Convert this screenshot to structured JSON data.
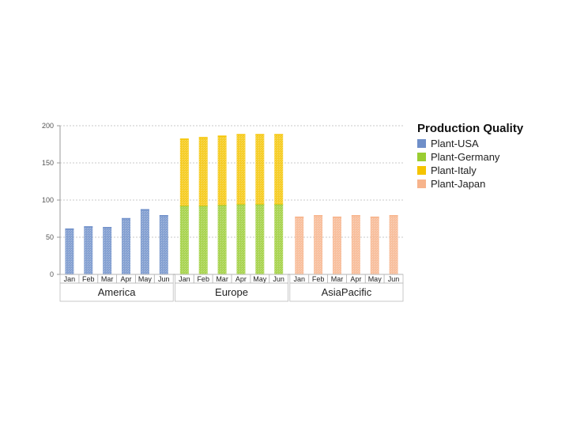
{
  "chart_data": {
    "type": "bar",
    "stacked": true,
    "title": "",
    "xlabel": "",
    "ylabel": "",
    "ylim": [
      0,
      200
    ],
    "yticks": [
      0,
      50,
      100,
      150,
      200
    ],
    "grid": true,
    "legend": {
      "title": "Production Quality",
      "placement": "right",
      "entries": [
        {
          "name": "Plant-USA",
          "color": "#6f8fc9"
        },
        {
          "name": "Plant-Germany",
          "color": "#9acd32"
        },
        {
          "name": "Plant-Italy",
          "color": "#f5c400"
        },
        {
          "name": "Plant-Japan",
          "color": "#f7b48c"
        }
      ]
    },
    "groups": [
      {
        "name": "America",
        "categories": [
          "Jan",
          "Feb",
          "Mar",
          "Apr",
          "May",
          "Jun"
        ],
        "series": [
          {
            "name": "Plant-USA",
            "values": [
              61,
              64,
              63,
              75,
              87,
              79
            ]
          }
        ]
      },
      {
        "name": "Europe",
        "categories": [
          "Jan",
          "Feb",
          "Mar",
          "Apr",
          "May",
          "Jun"
        ],
        "series": [
          {
            "name": "Plant-Germany",
            "values": [
              92,
              92,
              93,
              94,
              94,
              94
            ]
          },
          {
            "name": "Plant-Italy",
            "values": [
              90,
              92,
              93,
              94,
              94,
              94
            ]
          }
        ]
      },
      {
        "name": "AsiaPacific",
        "categories": [
          "Jan",
          "Feb",
          "Mar",
          "Apr",
          "May",
          "Jun"
        ],
        "series": [
          {
            "name": "Plant-Japan",
            "values": [
              77,
              79,
              77,
              79,
              77,
              79
            ]
          }
        ]
      }
    ]
  }
}
